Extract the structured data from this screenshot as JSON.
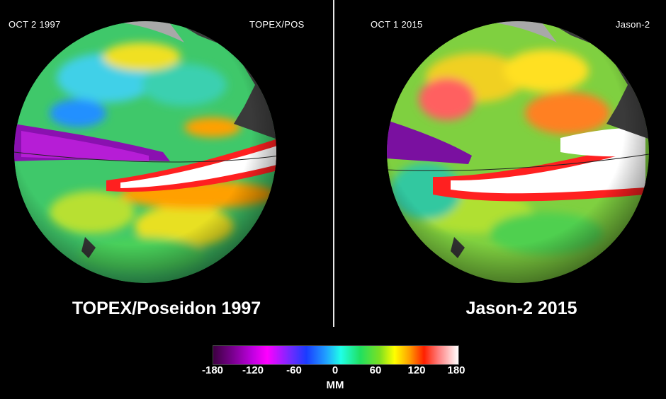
{
  "left_panel": {
    "date": "OCT  2  1997",
    "satellite": "TOPEX/POS",
    "title": "TOPEX/Poseidon 1997"
  },
  "right_panel": {
    "date": "OCT  1  2015",
    "satellite": "Jason-2",
    "title": "Jason-2 2015"
  },
  "colorbar": {
    "ticks": [
      "-180",
      "-120",
      "-60",
      "0",
      "60",
      "120",
      "180"
    ],
    "unit": "MM",
    "colors": [
      "#3c0040",
      "#c000e0",
      "#1a3cff",
      "#20ffe8",
      "#20e060",
      "#ffff00",
      "#ff2000",
      "#ffffff"
    ]
  }
}
